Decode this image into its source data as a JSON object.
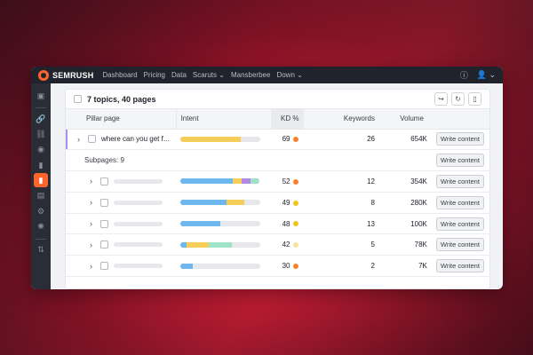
{
  "app": {
    "brand": "SEMRUSH",
    "nav": [
      "Dashboard",
      "Pricing",
      "Data",
      "Scaruts ⌄",
      "Mansberbee",
      "Down ⌄"
    ]
  },
  "sidebar": {
    "icons": [
      "home-icon",
      "link-icon",
      "link-alt-icon",
      "eye-icon",
      "bar-chart-icon",
      "chart-active-icon",
      "document-icon",
      "gear-icon",
      "bug-icon",
      "sort-icon"
    ]
  },
  "panel": {
    "title": "7 topics, 40 pages",
    "columns": [
      "Pillar page",
      "Intent",
      "KD %",
      "Keywords",
      "Volume"
    ],
    "colors": {
      "yellow": "#f5cd5b",
      "blue": "#6eb7ef",
      "purple": "#b387e8",
      "mint": "#9fe3c6",
      "orange": "#f5802e",
      "gold": "#f2c417",
      "pale": "#f7e39a"
    },
    "pillar_row": {
      "label": "where can you get f...",
      "kd": "69",
      "keywords": "26",
      "volume": "654K",
      "action": "Write content",
      "intent": [
        {
          "color": "#f5cd5b",
          "pct": 75
        }
      ],
      "kd_color": "#f5802e"
    },
    "subpages_label": "Subpages: 9",
    "subpages_action": "Write content",
    "rows": [
      {
        "kd": "52",
        "kd_color": "#f5802e",
        "keywords": "12",
        "volume": "354K",
        "action": "Write content",
        "intent": [
          {
            "color": "#6eb7ef",
            "pct": 66
          },
          {
            "color": "#f5cd5b",
            "pct": 11
          },
          {
            "color": "#b387e8",
            "pct": 11
          },
          {
            "color": "#9fe3c6",
            "pct": 10
          }
        ]
      },
      {
        "kd": "49",
        "kd_color": "#f2c417",
        "keywords": "8",
        "volume": "280K",
        "action": "Write content",
        "intent": [
          {
            "color": "#6eb7ef",
            "pct": 58
          },
          {
            "color": "#f5cd5b",
            "pct": 22
          }
        ]
      },
      {
        "kd": "48",
        "kd_color": "#f2c417",
        "keywords": "13",
        "volume": "100K",
        "action": "Write content",
        "intent": [
          {
            "color": "#6eb7ef",
            "pct": 50
          }
        ]
      },
      {
        "kd": "42",
        "kd_color": "#f7e39a",
        "keywords": "5",
        "volume": "78K",
        "action": "Write content",
        "intent": [
          {
            "color": "#6eb7ef",
            "pct": 8
          },
          {
            "color": "#f5cd5b",
            "pct": 27
          },
          {
            "color": "#9fe3c6",
            "pct": 29
          }
        ]
      },
      {
        "kd": "30",
        "kd_color": "#f5802e",
        "keywords": "2",
        "volume": "7K",
        "action": "Write content",
        "intent": [
          {
            "color": "#6eb7ef",
            "pct": 15
          }
        ]
      }
    ]
  }
}
